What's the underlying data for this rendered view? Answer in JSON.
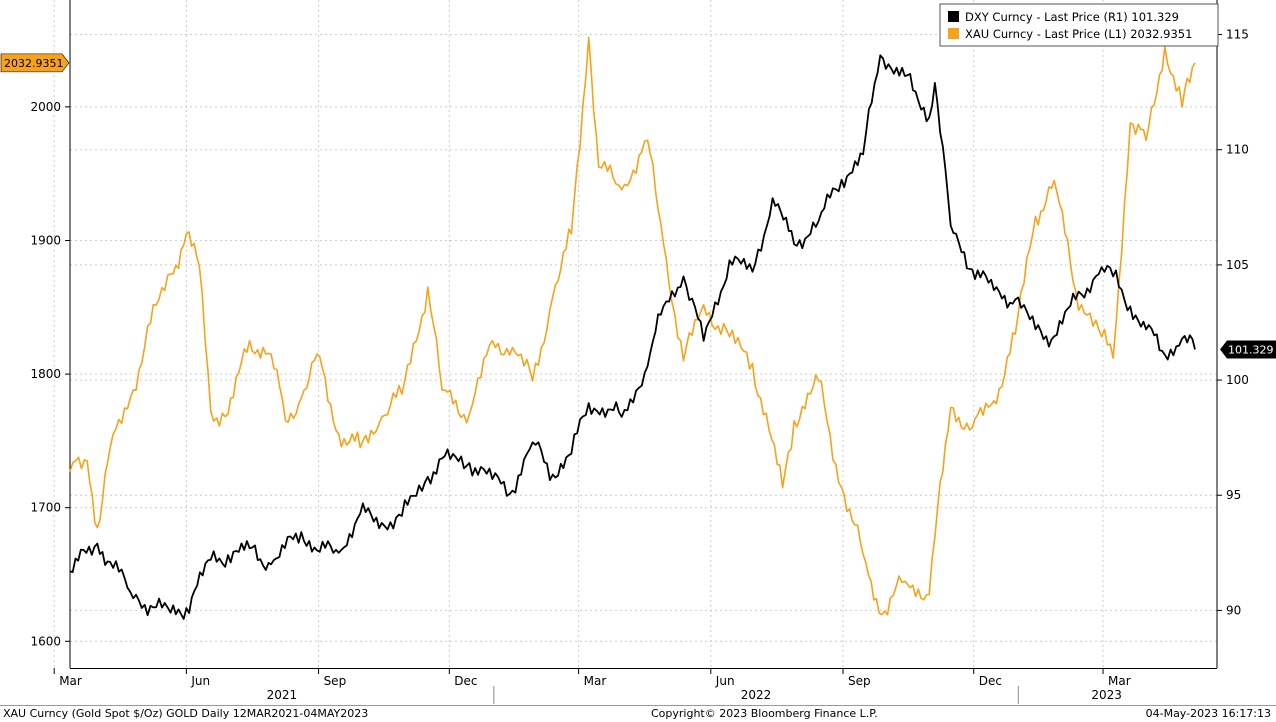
{
  "legend": {
    "position": "top-right",
    "items": [
      {
        "ticker": "DXY Curncy",
        "text": "DXY Curncy - Last Price (R1) 101.329",
        "color": "#000000",
        "axis": "right"
      },
      {
        "ticker": "XAU Curncy",
        "text": "XAU Curncy - Last Price (L1) 2032.9351",
        "color": "#f7a21b",
        "axis": "left"
      }
    ]
  },
  "last_value_tags": {
    "left": "2032.9351",
    "right": "101.329"
  },
  "footer": {
    "left": "XAU Curncy (Gold Spot  $/Oz) GOLD  Daily 12MAR2021-04MAY2023",
    "center": "Copyright© 2023 Bloomberg Finance L.P.",
    "right": "04-May-2023 16:17:13"
  },
  "colors": {
    "gold": "#f7a21b",
    "dxy": "#000000",
    "grid": "#cccccc",
    "background": "#ffffff"
  },
  "chart_data": {
    "type": "line",
    "x_range": [
      "2021-03-12",
      "2023-05-04"
    ],
    "x_ticks": [
      "Mar",
      "Jun",
      "Sep",
      "Dec",
      "Mar",
      "Jun",
      "Sep",
      "Dec",
      "Mar"
    ],
    "x_years": [
      "2021",
      "2022",
      "2023"
    ],
    "grid": true,
    "left_axis": {
      "ylim": [
        1580,
        2080
      ],
      "ticks": [
        1600,
        1700,
        1800,
        1900,
        2000
      ]
    },
    "right_axis": {
      "ylim": [
        87.5,
        116.5
      ],
      "ticks": [
        90,
        95,
        100,
        105,
        110,
        115
      ]
    },
    "series": [
      {
        "name": "XAU Curncy",
        "axis": "left",
        "color": "#f7a21b",
        "x": [
          "2021-03-12",
          "2021-03-24",
          "2021-03-31",
          "2021-04-09",
          "2021-04-23",
          "2021-05-07",
          "2021-05-21",
          "2021-06-01",
          "2021-06-10",
          "2021-06-18",
          "2021-06-30",
          "2021-07-15",
          "2021-07-30",
          "2021-08-09",
          "2021-08-20",
          "2021-08-31",
          "2021-09-15",
          "2021-09-30",
          "2021-10-15",
          "2021-10-29",
          "2021-11-16",
          "2021-11-26",
          "2021-12-15",
          "2021-12-31",
          "2022-01-14",
          "2022-01-28",
          "2022-02-11",
          "2022-02-24",
          "2022-03-08",
          "2022-03-15",
          "2022-03-31",
          "2022-04-18",
          "2022-04-29",
          "2022-05-13",
          "2022-05-27",
          "2022-06-14",
          "2022-06-30",
          "2022-07-21",
          "2022-07-29",
          "2022-08-15",
          "2022-08-31",
          "2022-09-15",
          "2022-09-28",
          "2022-10-14",
          "2022-10-31",
          "2022-11-04",
          "2022-11-15",
          "2022-11-30",
          "2022-12-15",
          "2022-12-30",
          "2023-01-13",
          "2023-01-26",
          "2023-02-10",
          "2023-02-28",
          "2023-03-08",
          "2023-03-20",
          "2023-03-31",
          "2023-04-13",
          "2023-04-25",
          "2023-05-04"
        ],
        "values": [
          1727,
          1735,
          1685,
          1745,
          1782,
          1838,
          1875,
          1905,
          1881,
          1772,
          1770,
          1825,
          1815,
          1765,
          1782,
          1815,
          1755,
          1745,
          1768,
          1785,
          1865,
          1788,
          1770,
          1825,
          1820,
          1795,
          1858,
          1905,
          2052,
          1955,
          1938,
          1975,
          1898,
          1810,
          1852,
          1828,
          1808,
          1715,
          1765,
          1795,
          1715,
          1665,
          1620,
          1645,
          1635,
          1678,
          1775,
          1760,
          1780,
          1830,
          1918,
          1945,
          1862,
          1828,
          1812,
          1988,
          1975,
          2045,
          2000,
          2032.9351
        ]
      },
      {
        "name": "DXY Curncy",
        "axis": "right",
        "color": "#000000",
        "x": [
          "2021-03-12",
          "2021-03-31",
          "2021-04-09",
          "2021-04-23",
          "2021-05-07",
          "2021-05-21",
          "2021-06-01",
          "2021-06-18",
          "2021-06-30",
          "2021-07-15",
          "2021-07-30",
          "2021-08-20",
          "2021-08-31",
          "2021-09-15",
          "2021-09-30",
          "2021-10-15",
          "2021-10-29",
          "2021-11-16",
          "2021-11-26",
          "2021-12-15",
          "2021-12-31",
          "2022-01-14",
          "2022-01-28",
          "2022-02-11",
          "2022-02-24",
          "2022-03-08",
          "2022-03-31",
          "2022-04-18",
          "2022-04-29",
          "2022-05-13",
          "2022-05-27",
          "2022-06-14",
          "2022-06-30",
          "2022-07-14",
          "2022-07-29",
          "2022-08-15",
          "2022-08-31",
          "2022-09-15",
          "2022-09-27",
          "2022-10-14",
          "2022-10-31",
          "2022-11-04",
          "2022-11-15",
          "2022-11-30",
          "2022-12-15",
          "2022-12-30",
          "2023-01-13",
          "2023-01-26",
          "2023-02-10",
          "2023-02-28",
          "2023-03-08",
          "2023-03-20",
          "2023-03-31",
          "2023-04-13",
          "2023-04-25",
          "2023-05-04"
        ],
        "values": [
          91.7,
          92.9,
          92.1,
          90.8,
          90.2,
          89.9,
          90.1,
          92.2,
          92.4,
          92.7,
          92.0,
          93.4,
          92.6,
          92.5,
          94.2,
          93.8,
          94.1,
          95.8,
          96.6,
          96.4,
          95.7,
          95.2,
          97.3,
          95.9,
          96.8,
          99.0,
          98.4,
          100.6,
          103.2,
          104.5,
          101.7,
          105.2,
          104.7,
          107.9,
          105.9,
          106.9,
          108.7,
          109.8,
          114.1,
          113.2,
          111.4,
          112.9,
          106.7,
          104.8,
          103.9,
          103.5,
          102.2,
          101.9,
          103.5,
          104.9,
          104.5,
          103.2,
          102.2,
          101.1,
          101.8,
          101.329
        ]
      }
    ]
  }
}
